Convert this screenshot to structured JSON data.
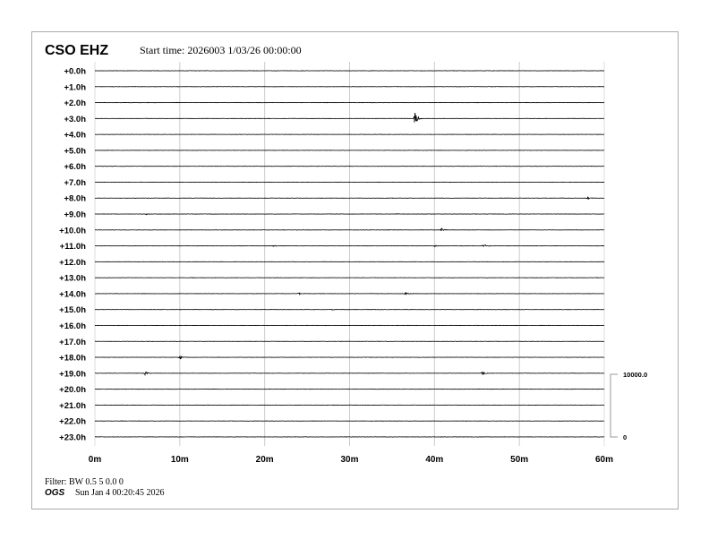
{
  "header": {
    "station": "CSO EHZ",
    "start_time": "Start time: 2026003  1/03/26 00:00:00"
  },
  "footer": {
    "filter": "Filter: BW 0.5 5 0.0 0",
    "org": "OGS",
    "timestamp": "Sun Jan  4 00:20:45 2026"
  },
  "chart_data": {
    "type": "line",
    "title": "CSO EHZ",
    "row_labels": [
      "+0.0h",
      "+1.0h",
      "+2.0h",
      "+3.0h",
      "+4.0h",
      "+5.0h",
      "+6.0h",
      "+7.0h",
      "+8.0h",
      "+9.0h",
      "+10.0h",
      "+11.0h",
      "+12.0h",
      "+13.0h",
      "+14.0h",
      "+15.0h",
      "+16.0h",
      "+17.0h",
      "+18.0h",
      "+19.0h",
      "+20.0h",
      "+21.0h",
      "+22.0h",
      "+23.0h"
    ],
    "x_ticks": [
      "0m",
      "10m",
      "20m",
      "30m",
      "40m",
      "50m",
      "60m"
    ],
    "x_range_minutes": [
      0,
      60
    ],
    "grid": "vertical every 10m",
    "scale": {
      "max_label": "10000.0",
      "min_label": "0",
      "max": 10000,
      "min": 0
    },
    "trace_color": "#000000",
    "grid_color": "#cccccc",
    "events": [
      {
        "row": 3,
        "minute": 37.6,
        "amplitude": 1400
      },
      {
        "row": 8,
        "minute": 58.0,
        "amplitude": 300
      },
      {
        "row": 9,
        "minute": 6.0,
        "amplitude": 150
      },
      {
        "row": 9,
        "minute": 35.5,
        "amplitude": 120
      },
      {
        "row": 10,
        "minute": 40.8,
        "amplitude": 350
      },
      {
        "row": 11,
        "minute": 21.0,
        "amplitude": 150
      },
      {
        "row": 11,
        "minute": 40.0,
        "amplitude": 150
      },
      {
        "row": 11,
        "minute": 45.8,
        "amplitude": 350
      },
      {
        "row": 13,
        "minute": 11.3,
        "amplitude": 100
      },
      {
        "row": 14,
        "minute": 24.0,
        "amplitude": 150
      },
      {
        "row": 14,
        "minute": 36.5,
        "amplitude": 300
      },
      {
        "row": 15,
        "minute": 27.8,
        "amplitude": 100
      },
      {
        "row": 18,
        "minute": 10.0,
        "amplitude": 400
      },
      {
        "row": 19,
        "minute": 5.9,
        "amplitude": 300
      },
      {
        "row": 19,
        "minute": 45.6,
        "amplitude": 300
      }
    ]
  }
}
